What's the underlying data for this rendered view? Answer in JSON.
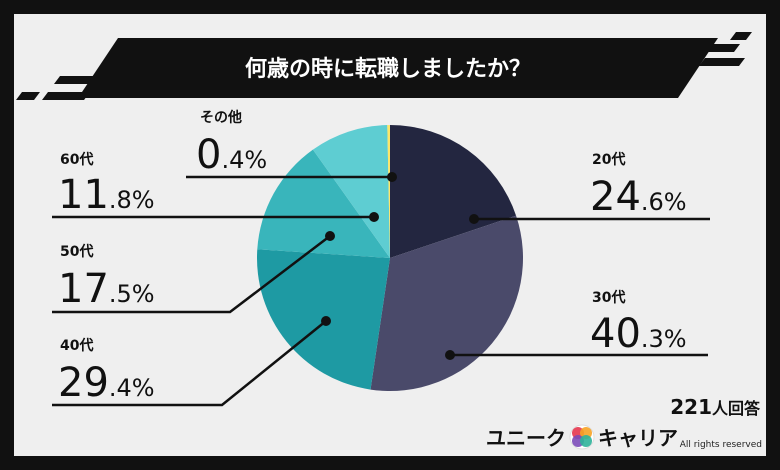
{
  "chart_data": {
    "type": "pie",
    "title": "何歳の時に転職しましたか？",
    "categories": [
      "20代",
      "30代",
      "40代",
      "50代",
      "60代",
      "その他"
    ],
    "values": [
      24.6,
      40.3,
      29.4,
      17.5,
      11.8,
      0.4
    ],
    "value_labels": [
      {
        "int": "24",
        "dec": ".6%"
      },
      {
        "int": "40",
        "dec": ".3%"
      },
      {
        "int": "29",
        "dec": ".4%"
      },
      {
        "int": "17",
        "dec": ".5%"
      },
      {
        "int": "11",
        "dec": ".8%"
      },
      {
        "int": "0",
        "dec": ".4%"
      }
    ],
    "colors": [
      "#232640",
      "#4a4a6a",
      "#1e9aa3",
      "#39b5bb",
      "#5ecdd2",
      "#fde66a"
    ]
  },
  "respondents": {
    "count": "221",
    "unit": "人回答"
  },
  "logo": {
    "left": "ユニーク",
    "right": "キャリア"
  },
  "rights": "All rights reserved"
}
